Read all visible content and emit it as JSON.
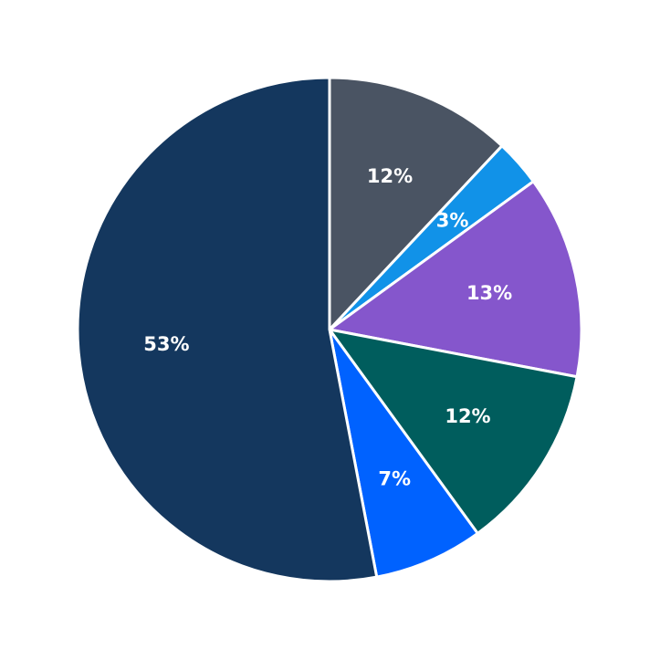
{
  "chart_data": {
    "type": "pie",
    "values": [
      12,
      3,
      13,
      12,
      7,
      53
    ],
    "value_labels": [
      "12%",
      "3%",
      "13%",
      "12%",
      "7%",
      "53%"
    ],
    "colors": [
      "#4a5463",
      "#1192e8",
      "#8556cc",
      "#005d5d",
      "#0062ff",
      "#14375e"
    ]
  }
}
